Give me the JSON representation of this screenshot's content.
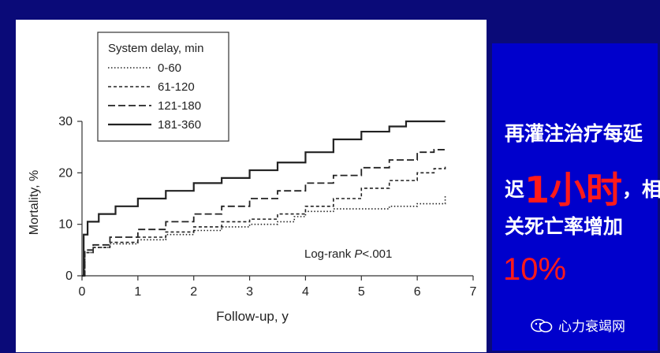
{
  "chart_data": {
    "type": "line",
    "xlabel": "Follow-up, y",
    "ylabel": "Mortality, %",
    "xlim": [
      0,
      7
    ],
    "ylim": [
      0,
      30
    ],
    "xticks": [
      "0",
      "1",
      "2",
      "3",
      "4",
      "5",
      "6",
      "7"
    ],
    "yticks": [
      "0",
      "10",
      "20",
      "30"
    ],
    "legend_title": "System delay, min",
    "legend_position": "top-left",
    "annotation": "Log-rank P<.001",
    "series": [
      {
        "name": "0-60",
        "style": "dotted",
        "x": [
          0,
          0.05,
          0.2,
          0.5,
          1,
          1.5,
          2,
          2.5,
          3,
          3.5,
          3.8,
          4,
          4.5,
          5,
          5.5,
          6,
          6.3,
          6.5,
          6.5
        ],
        "y": [
          0,
          4.5,
          5.5,
          6.2,
          7,
          8,
          8.8,
          9.5,
          10,
          10.5,
          11.5,
          12.5,
          13,
          13,
          13.5,
          14,
          14,
          14,
          15.5
        ]
      },
      {
        "name": "61-120",
        "style": "short-dash",
        "x": [
          0,
          0.05,
          0.2,
          0.5,
          1,
          1.5,
          2,
          2.5,
          3,
          3.5,
          4,
          4.5,
          5,
          5.5,
          6,
          6.3,
          6.5
        ],
        "y": [
          0,
          4.5,
          5.5,
          6.5,
          7.5,
          8.5,
          9.5,
          10.5,
          11,
          12,
          13.5,
          15,
          17,
          18.5,
          20,
          20.8,
          21.5
        ]
      },
      {
        "name": "121-180",
        "style": "long-dash",
        "x": [
          0,
          0.05,
          0.2,
          0.5,
          1,
          1.5,
          2,
          2.5,
          3,
          3.5,
          4,
          4.5,
          5,
          5.5,
          6,
          6.3,
          6.5
        ],
        "y": [
          0,
          5,
          6,
          7.5,
          9,
          10.5,
          12,
          13.5,
          15,
          16.5,
          18,
          19.5,
          21,
          22.5,
          24,
          24.5,
          25
        ]
      },
      {
        "name": "181-360",
        "style": "solid",
        "x": [
          0,
          0.03,
          0.1,
          0.3,
          0.6,
          1,
          1.5,
          2,
          2.5,
          3,
          3.5,
          4,
          4.5,
          5,
          5.5,
          5.8,
          6,
          6.5
        ],
        "y": [
          0,
          8,
          10.5,
          12,
          13.5,
          15,
          16.5,
          18,
          19,
          20.5,
          22,
          24,
          26.5,
          28,
          29,
          30,
          30,
          30
        ]
      }
    ]
  },
  "text": {
    "line1": "再灌注治疗每延",
    "line2_prefix": "迟",
    "line2_big": "1小时",
    "line2_suffix": "，相",
    "line3": "关死亡率增加",
    "percent": "10%",
    "watermark": "心力衰竭网"
  },
  "colors": {
    "background": "#0a0a78",
    "panel": "#0000cc",
    "highlight": "#ff1a1a",
    "curve": "#222222"
  }
}
